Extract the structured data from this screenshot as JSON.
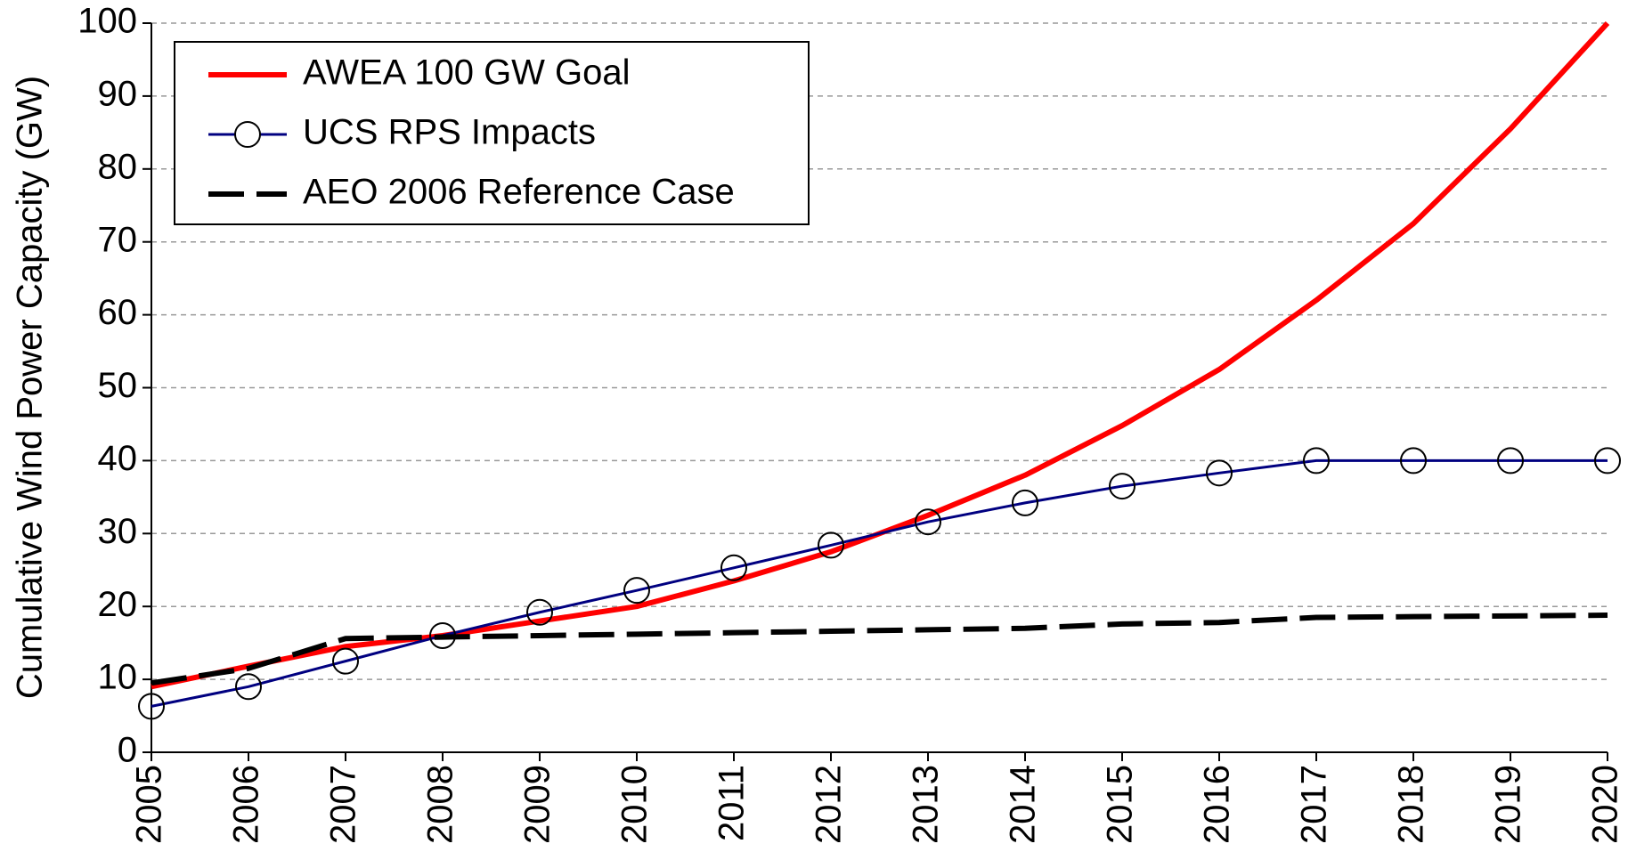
{
  "chart_data": {
    "type": "line",
    "y_label": "Cumulative Wind Power Capacity (GW)",
    "categories": [
      "2005",
      "2006",
      "2007",
      "2008",
      "2009",
      "2010",
      "2011",
      "2012",
      "2013",
      "2014",
      "2015",
      "2016",
      "2017",
      "2018",
      "2019",
      "2020"
    ],
    "series": [
      {
        "name": "AWEA 100 GW Goal",
        "color": "#ff0000",
        "width": 6,
        "dash": false,
        "marker": "none",
        "values": [
          9,
          11.8,
          14.5,
          16,
          18,
          20,
          23.5,
          27.5,
          32.5,
          38,
          44.8,
          52.5,
          62,
          72.5,
          85.5,
          100
        ]
      },
      {
        "name": "UCS RPS Impacts",
        "color": "#000080",
        "width": 3,
        "dash": false,
        "marker": "circle",
        "values": [
          6.3,
          9,
          12.5,
          16,
          19.2,
          22.2,
          25.3,
          28.4,
          31.6,
          34.2,
          36.5,
          38.3,
          40,
          40,
          40,
          40
        ]
      },
      {
        "name": "AEO 2006 Reference Case",
        "color": "#000000",
        "width": 6,
        "dash": true,
        "marker": "none",
        "values": [
          9.5,
          11.5,
          15.6,
          15.8,
          16,
          16.2,
          16.4,
          16.6,
          16.8,
          17,
          17.6,
          17.8,
          18.5,
          18.6,
          18.7,
          18.8
        ]
      }
    ],
    "ylim": [
      0,
      100
    ],
    "yticks": [
      0,
      10,
      20,
      30,
      40,
      50,
      60,
      70,
      80,
      90,
      100
    ],
    "grid": true,
    "legend": "upper left"
  }
}
